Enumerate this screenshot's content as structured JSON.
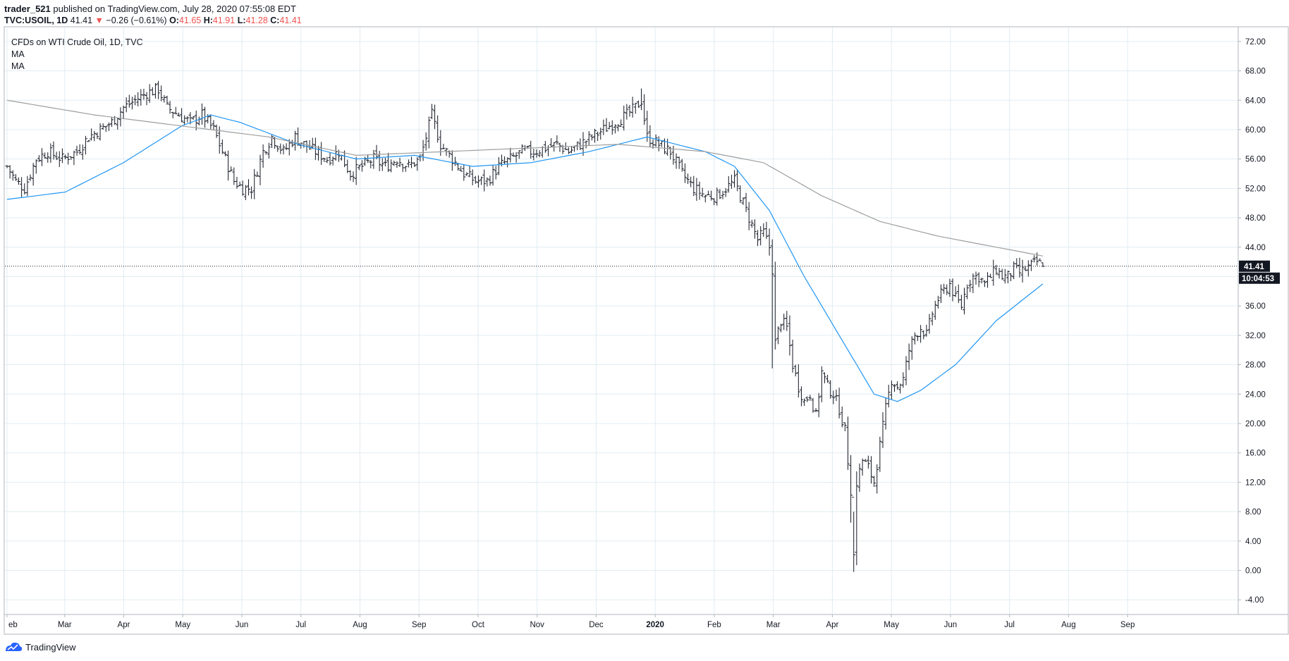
{
  "header": {
    "publisher": "trader_521",
    "published_text": "published on TradingView.com, July 28, 2020 07:55:08 EDT",
    "symbol_line": "TVC:USOIL, 1D",
    "last": "41.41",
    "change_arrow": "▼",
    "change": "−0.26 (−0.61%)",
    "open_label": "O:",
    "open": "41.65",
    "high_label": "H:",
    "high": "41.91",
    "low_label": "L:",
    "low": "41.28",
    "close_label": "C:",
    "close": "41.41"
  },
  "legend": {
    "title": "CFDs on WTI Crude Oil, 1D, TVC",
    "ma1": "MA",
    "ma2": "MA"
  },
  "price_label": {
    "value": "41.41",
    "countdown": "10:04:53"
  },
  "footer": {
    "brand": "TradingView"
  },
  "colors": {
    "bar": "#131722",
    "ma_fast": "#2196f3",
    "ma_slow": "#9e9e9e",
    "grid": "#e1ecf2",
    "down": "#ef5350"
  },
  "chart_data": {
    "type": "ohlc",
    "instrument": "WTI Crude Oil CFD",
    "timeframe": "1D",
    "ylim": [
      -6,
      74
    ],
    "ytick_labels": [
      "-4.00",
      "0.00",
      "4.00",
      "8.00",
      "12.00",
      "16.00",
      "20.00",
      "24.00",
      "28.00",
      "32.00",
      "36.00",
      "40.00",
      "44.00",
      "48.00",
      "52.00",
      "56.00",
      "60.00",
      "64.00",
      "68.00",
      "72.00"
    ],
    "xtick_labels": [
      "eb",
      "Mar",
      "Apr",
      "May",
      "Jun",
      "Jul",
      "Aug",
      "Sep",
      "Oct",
      "Nov",
      "Dec",
      "2020",
      "Feb",
      "Mar",
      "Apr",
      "May",
      "Jun",
      "Jul",
      "Aug",
      "Sep"
    ],
    "last_price": 41.41,
    "close_path": [
      {
        "t": 0,
        "v": 55
      },
      {
        "t": 3,
        "v": 53
      },
      {
        "t": 6,
        "v": 52
      },
      {
        "t": 10,
        "v": 56
      },
      {
        "t": 14,
        "v": 57
      },
      {
        "t": 19,
        "v": 56
      },
      {
        "t": 24,
        "v": 57
      },
      {
        "t": 28,
        "v": 59
      },
      {
        "t": 32,
        "v": 60
      },
      {
        "t": 36,
        "v": 61
      },
      {
        "t": 40,
        "v": 63
      },
      {
        "t": 44,
        "v": 64
      },
      {
        "t": 48,
        "v": 65
      },
      {
        "t": 52,
        "v": 65.5
      },
      {
        "t": 55,
        "v": 63
      },
      {
        "t": 59,
        "v": 62
      },
      {
        "t": 63,
        "v": 61
      },
      {
        "t": 67,
        "v": 62
      },
      {
        "t": 71,
        "v": 60
      },
      {
        "t": 74,
        "v": 57
      },
      {
        "t": 78,
        "v": 53
      },
      {
        "t": 81,
        "v": 52
      },
      {
        "t": 84,
        "v": 52
      },
      {
        "t": 88,
        "v": 57
      },
      {
        "t": 91,
        "v": 59
      },
      {
        "t": 95,
        "v": 57
      },
      {
        "t": 99,
        "v": 59
      },
      {
        "t": 102,
        "v": 58
      },
      {
        "t": 106,
        "v": 57
      },
      {
        "t": 110,
        "v": 56
      },
      {
        "t": 114,
        "v": 57
      },
      {
        "t": 118,
        "v": 54
      },
      {
        "t": 122,
        "v": 55
      },
      {
        "t": 126,
        "v": 56
      },
      {
        "t": 130,
        "v": 55
      },
      {
        "t": 134,
        "v": 56
      },
      {
        "t": 138,
        "v": 55
      },
      {
        "t": 142,
        "v": 56
      },
      {
        "t": 146,
        "v": 62
      },
      {
        "t": 149,
        "v": 58
      },
      {
        "t": 153,
        "v": 56
      },
      {
        "t": 157,
        "v": 54
      },
      {
        "t": 161,
        "v": 53
      },
      {
        "t": 165,
        "v": 53
      },
      {
        "t": 169,
        "v": 55
      },
      {
        "t": 173,
        "v": 56
      },
      {
        "t": 177,
        "v": 57
      },
      {
        "t": 181,
        "v": 57
      },
      {
        "t": 185,
        "v": 57.5
      },
      {
        "t": 189,
        "v": 58
      },
      {
        "t": 193,
        "v": 57
      },
      {
        "t": 197,
        "v": 58
      },
      {
        "t": 201,
        "v": 59
      },
      {
        "t": 205,
        "v": 60
      },
      {
        "t": 209,
        "v": 61
      },
      {
        "t": 213,
        "v": 62
      },
      {
        "t": 216,
        "v": 63
      },
      {
        "t": 218,
        "v": 64
      },
      {
        "t": 220,
        "v": 59
      },
      {
        "t": 224,
        "v": 58
      },
      {
        "t": 228,
        "v": 57
      },
      {
        "t": 232,
        "v": 54
      },
      {
        "t": 236,
        "v": 52
      },
      {
        "t": 240,
        "v": 51
      },
      {
        "t": 244,
        "v": 51
      },
      {
        "t": 247,
        "v": 52
      },
      {
        "t": 250,
        "v": 53
      },
      {
        "t": 252,
        "v": 51
      },
      {
        "t": 254,
        "v": 49
      },
      {
        "t": 256,
        "v": 47
      },
      {
        "t": 258,
        "v": 45
      },
      {
        "t": 260,
        "v": 46
      },
      {
        "t": 262,
        "v": 44
      },
      {
        "t": 263,
        "v": 41
      },
      {
        "t": 264,
        "v": 31
      },
      {
        "t": 266,
        "v": 34
      },
      {
        "t": 268,
        "v": 33
      },
      {
        "t": 270,
        "v": 28
      },
      {
        "t": 272,
        "v": 25
      },
      {
        "t": 274,
        "v": 23
      },
      {
        "t": 276,
        "v": 24
      },
      {
        "t": 278,
        "v": 21
      },
      {
        "t": 280,
        "v": 27
      },
      {
        "t": 282,
        "v": 25
      },
      {
        "t": 284,
        "v": 24
      },
      {
        "t": 286,
        "v": 22
      },
      {
        "t": 288,
        "v": 19
      },
      {
        "t": 290,
        "v": 11
      },
      {
        "t": 291,
        "v": 2
      },
      {
        "t": 292,
        "v": 12
      },
      {
        "t": 294,
        "v": 15
      },
      {
        "t": 296,
        "v": 14
      },
      {
        "t": 298,
        "v": 12
      },
      {
        "t": 300,
        "v": 17
      },
      {
        "t": 302,
        "v": 22
      },
      {
        "t": 304,
        "v": 26
      },
      {
        "t": 306,
        "v": 25
      },
      {
        "t": 308,
        "v": 26
      },
      {
        "t": 310,
        "v": 30
      },
      {
        "t": 312,
        "v": 32
      },
      {
        "t": 314,
        "v": 33
      },
      {
        "t": 316,
        "v": 32
      },
      {
        "t": 318,
        "v": 35
      },
      {
        "t": 320,
        "v": 37
      },
      {
        "t": 322,
        "v": 38
      },
      {
        "t": 324,
        "v": 39
      },
      {
        "t": 326,
        "v": 37
      },
      {
        "t": 328,
        "v": 36
      },
      {
        "t": 330,
        "v": 39
      },
      {
        "t": 332,
        "v": 40
      },
      {
        "t": 334,
        "v": 40
      },
      {
        "t": 336,
        "v": 39
      },
      {
        "t": 338,
        "v": 40
      },
      {
        "t": 340,
        "v": 41
      },
      {
        "t": 342,
        "v": 40
      },
      {
        "t": 344,
        "v": 40
      },
      {
        "t": 346,
        "v": 41
      },
      {
        "t": 348,
        "v": 40.5
      },
      {
        "t": 350,
        "v": 41
      },
      {
        "t": 352,
        "v": 41.5
      },
      {
        "t": 354,
        "v": 42
      },
      {
        "t": 356,
        "v": 41.41
      }
    ],
    "series": [
      {
        "type": "sma",
        "values_at": [
          {
            "t": 0,
            "v": 50.5
          },
          {
            "t": 20,
            "v": 51.5
          },
          {
            "t": 40,
            "v": 55.5
          },
          {
            "t": 60,
            "v": 60.5
          },
          {
            "t": 70,
            "v": 62
          },
          {
            "t": 80,
            "v": 61
          },
          {
            "t": 100,
            "v": 58
          },
          {
            "t": 120,
            "v": 56
          },
          {
            "t": 140,
            "v": 56.5
          },
          {
            "t": 160,
            "v": 55
          },
          {
            "t": 180,
            "v": 55.5
          },
          {
            "t": 200,
            "v": 57
          },
          {
            "t": 220,
            "v": 59
          },
          {
            "t": 240,
            "v": 57
          },
          {
            "t": 250,
            "v": 55
          },
          {
            "t": 262,
            "v": 49
          },
          {
            "t": 274,
            "v": 40
          },
          {
            "t": 286,
            "v": 32
          },
          {
            "t": 298,
            "v": 24
          },
          {
            "t": 306,
            "v": 23
          },
          {
            "t": 314,
            "v": 24.5
          },
          {
            "t": 326,
            "v": 28
          },
          {
            "t": 340,
            "v": 34
          },
          {
            "t": 356,
            "v": 39
          }
        ]
      },
      {
        "type": "sma",
        "values_at": [
          {
            "t": 0,
            "v": 64
          },
          {
            "t": 30,
            "v": 62
          },
          {
            "t": 60,
            "v": 60.5
          },
          {
            "t": 90,
            "v": 59
          },
          {
            "t": 120,
            "v": 56.5
          },
          {
            "t": 150,
            "v": 57
          },
          {
            "t": 180,
            "v": 57.5
          },
          {
            "t": 210,
            "v": 58
          },
          {
            "t": 240,
            "v": 57
          },
          {
            "t": 260,
            "v": 55.5
          },
          {
            "t": 280,
            "v": 51
          },
          {
            "t": 300,
            "v": 47.5
          },
          {
            "t": 320,
            "v": 45.5
          },
          {
            "t": 340,
            "v": 44
          },
          {
            "t": 356,
            "v": 42.8
          }
        ]
      }
    ]
  }
}
